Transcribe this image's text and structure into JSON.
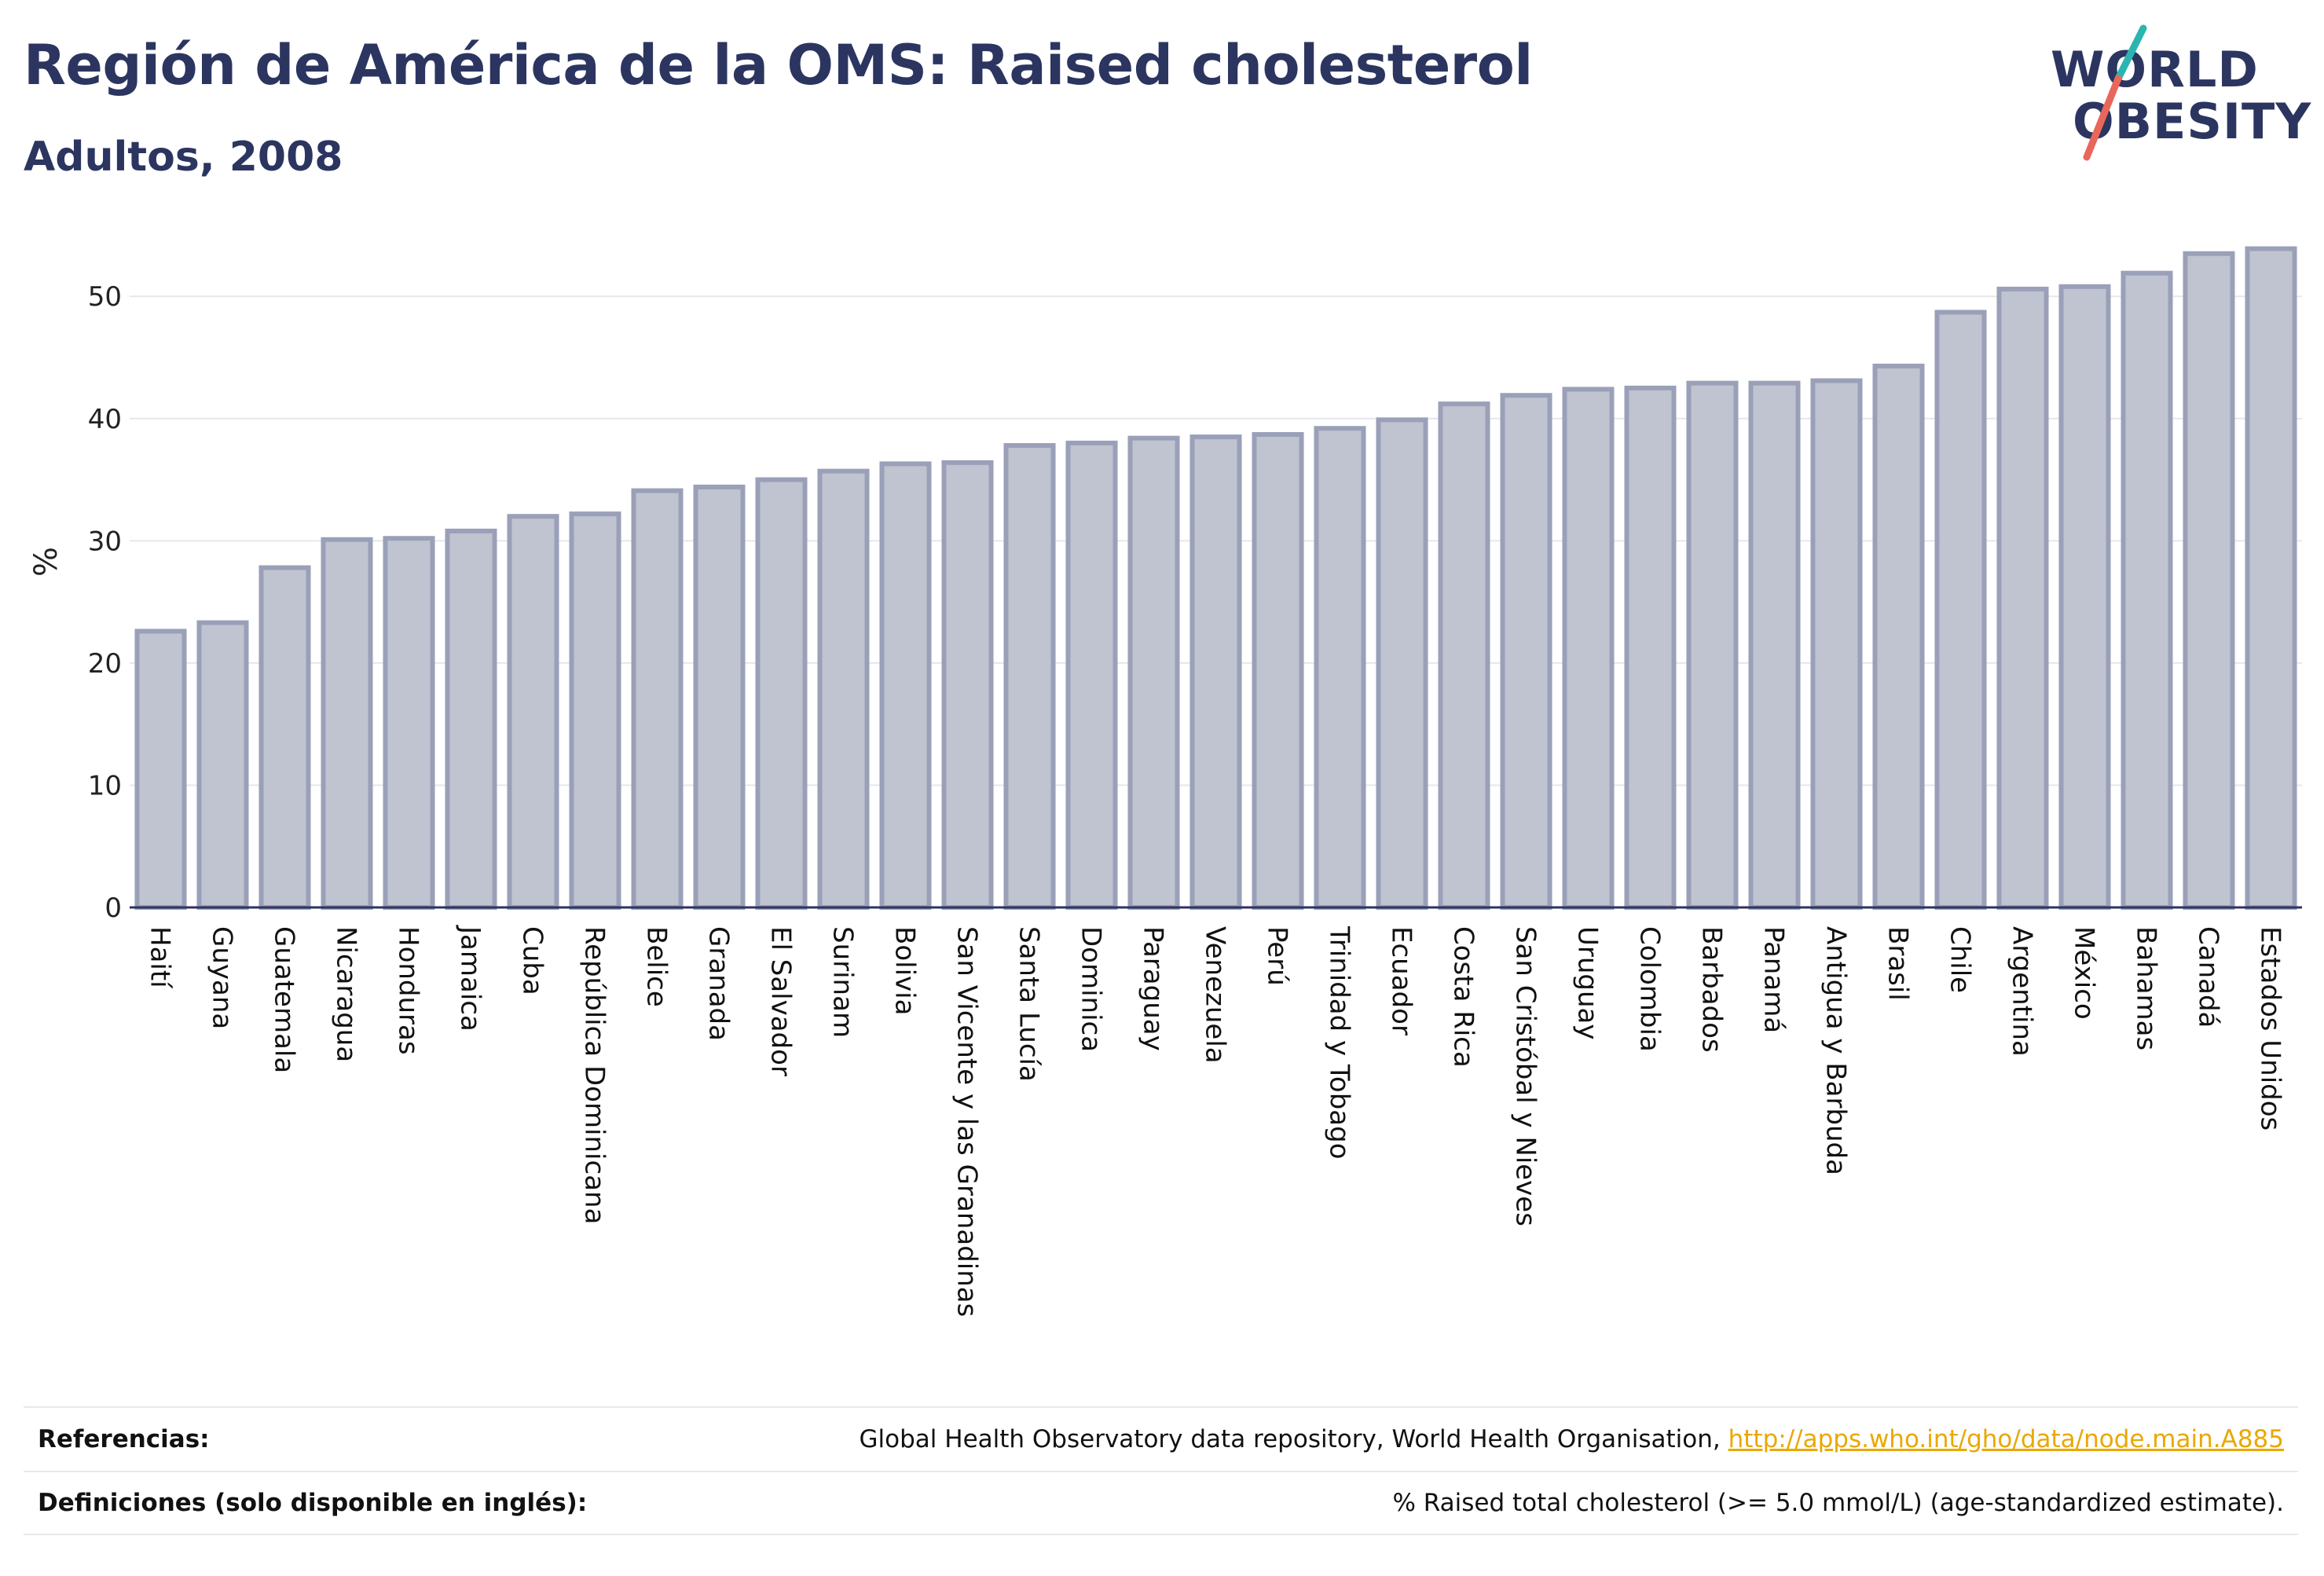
{
  "header": {
    "title": "Región de América de la OMS: Raised cholesterol",
    "subtitle": "Adultos, 2008"
  },
  "logo": {
    "line1": "WORLD",
    "line2": "OBESITY",
    "colors": {
      "text": "#2b3560",
      "slash_top": "#2bb5b0",
      "slash_bottom": "#e8675a"
    }
  },
  "colors": {
    "bar_fill": "#c0c3d0",
    "bar_stroke": "#9aa0b8",
    "grid": "#e6e7ec",
    "axis": "#2b3560"
  },
  "chart_data": {
    "type": "bar",
    "ylabel": "%",
    "xlabel": "",
    "ylim": [
      0,
      54
    ],
    "yticks": [
      0,
      10,
      20,
      30,
      40,
      50
    ],
    "grid": true,
    "categories": [
      "Haití",
      "Guyana",
      "Guatemala",
      "Nicaragua",
      "Honduras",
      "Jamaica",
      "Cuba",
      "República Dominicana",
      "Belice",
      "Granada",
      "El Salvador",
      "Surinam",
      "Bolivia",
      "San Vicente y las Granadinas",
      "Santa Lucía",
      "Dominica",
      "Paraguay",
      "Venezuela",
      "Perú",
      "Trinidad y Tobago",
      "Ecuador",
      "Costa Rica",
      "San Cristóbal y Nieves",
      "Uruguay",
      "Colombia",
      "Barbados",
      "Panamá",
      "Antigua y Barbuda",
      "Brasil",
      "Chile",
      "Argentina",
      "México",
      "Bahamas",
      "Canadá",
      "Estados Unidos"
    ],
    "values": [
      22.6,
      23.3,
      27.8,
      30.1,
      30.2,
      30.8,
      32.0,
      32.2,
      34.1,
      34.4,
      35.0,
      35.7,
      36.3,
      36.4,
      37.8,
      38.0,
      38.4,
      38.5,
      38.7,
      39.2,
      39.9,
      41.2,
      41.9,
      42.4,
      42.5,
      42.9,
      42.9,
      43.1,
      44.3,
      48.7,
      50.6,
      50.8,
      51.9,
      53.5,
      53.9
    ]
  },
  "footer": {
    "references_label": "Referencias:",
    "references_text": "Global Health Observatory data repository, World Health Organisation, ",
    "references_link": "http://apps.who.int/gho/data/node.main.A885",
    "definitions_label": "Definiciones (solo disponible en inglés):",
    "definitions_text": "% Raised total cholesterol (>= 5.0 mmol/L) (age-standardized estimate)."
  }
}
